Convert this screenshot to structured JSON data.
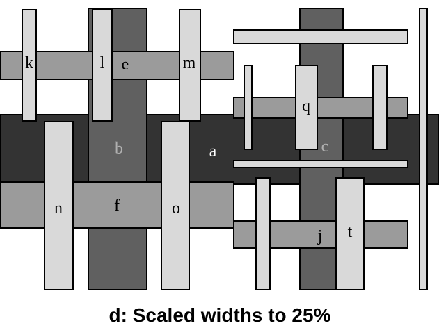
{
  "caption": "d: Scaled widths to 25%",
  "labels": {
    "a": "a",
    "b": "b",
    "c": "c",
    "e": "e",
    "f": "f",
    "j": "j",
    "k": "k",
    "l": "l",
    "m": "m",
    "n": "n",
    "o": "o",
    "q": "q",
    "t": "t"
  },
  "colors": {
    "black": "#333333",
    "dark": "#606060",
    "medium": "#9b9b9b",
    "light": "#d9d9d9",
    "label_on_light": "#000000",
    "label_on_dark": "#ffffff",
    "label_on_dark_gray": "#b0b0b0"
  }
}
